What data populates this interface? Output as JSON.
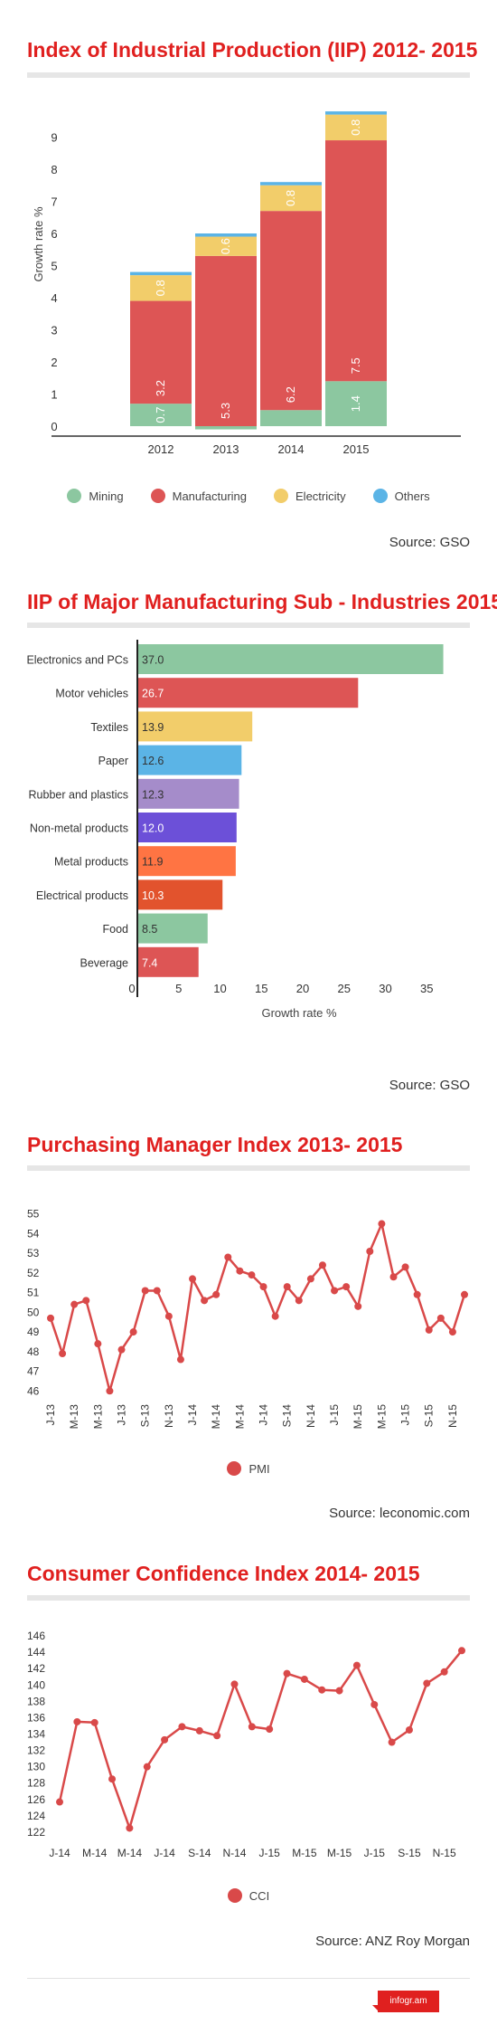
{
  "sections": {
    "iip": {
      "title": "Index of Industrial Production (IIP) 2012- 2015",
      "source": "Source: GSO",
      "legend": [
        {
          "name": "Mining",
          "color": "#8cc7a0"
        },
        {
          "name": "Manufacturing",
          "color": "#dd5555"
        },
        {
          "name": "Electricity",
          "color": "#f2cd6a"
        },
        {
          "name": "Others",
          "color": "#5bb4e6"
        }
      ]
    },
    "subind": {
      "title": "IIP of Major Manufacturing Sub - Industries 2015",
      "source": "Source: GSO"
    },
    "pmi": {
      "title": "Purchasing Manager Index 2013- 2015",
      "source": "Source: leconomic.com",
      "legend": [
        {
          "name": "PMI",
          "color": "#d94949"
        }
      ]
    },
    "cci": {
      "title": "Consumer Confidence Index 2014- 2015",
      "source": "Source: ANZ Roy Morgan",
      "legend": [
        {
          "name": "CCI",
          "color": "#d94949"
        }
      ]
    }
  },
  "brand": "infogr.am",
  "chart_data": [
    {
      "type": "bar",
      "stacked": true,
      "ylabel": "Growth rate %",
      "ylim": [
        -0.5,
        9.5
      ],
      "yticks": [
        0,
        1,
        2,
        3,
        4,
        5,
        6,
        7,
        8,
        9
      ],
      "categories": [
        "2012",
        "2013",
        "2014",
        "2015"
      ],
      "series": [
        {
          "name": "Mining",
          "color": "#8cc7a0",
          "values": [
            0.7,
            -0.1,
            0.5,
            1.4
          ],
          "labels": [
            "0.7",
            "",
            "",
            "1.4"
          ]
        },
        {
          "name": "Manufacturing",
          "color": "#dd5555",
          "values": [
            3.2,
            5.3,
            6.2,
            7.5
          ],
          "labels": [
            "3.2",
            "5.3",
            "6.2",
            "7.5"
          ]
        },
        {
          "name": "Electricity",
          "color": "#f2cd6a",
          "values": [
            0.8,
            0.6,
            0.8,
            0.8
          ],
          "labels": [
            "0.8",
            "0.6",
            "0.8",
            "0.8"
          ]
        },
        {
          "name": "Others",
          "color": "#5bb4e6",
          "values": [
            0.1,
            0.1,
            0.1,
            0.1
          ],
          "labels": [
            "",
            "",
            "",
            ""
          ]
        }
      ],
      "grid": false
    },
    {
      "type": "bar",
      "orientation": "horizontal",
      "xlabel": "Growth rate %",
      "xlim": [
        0,
        38
      ],
      "xticks": [
        0,
        5,
        10,
        15,
        20,
        25,
        30,
        35
      ],
      "categories": [
        "Electronics and PCs",
        "Motor vehicles",
        "Textiles",
        "Paper",
        "Rubber and plastics",
        "Non-metal products",
        "Metal products",
        "Electrical products",
        "Food",
        "Beverage"
      ],
      "values": [
        37.0,
        26.7,
        13.9,
        12.6,
        12.3,
        12.0,
        11.9,
        10.3,
        8.5,
        7.4
      ],
      "labels": [
        "37.0",
        "26.7",
        "13.9",
        "12.6",
        "12.3",
        "12.0",
        "11.9",
        "10.3",
        "8.5",
        "7.4"
      ],
      "colors": [
        "#8cc7a0",
        "#dd5555",
        "#f2cd6a",
        "#5bb4e6",
        "#a58cca",
        "#6c50d8",
        "#ff7443",
        "#e2532d",
        "#8cc7a0",
        "#dd5555"
      ],
      "label_colors": [
        "#333333",
        "#ffffff",
        "#333333",
        "#333333",
        "#333333",
        "#ffffff",
        "#333333",
        "#ffffff",
        "#333333",
        "#ffffff"
      ],
      "grid": false
    },
    {
      "type": "line",
      "series": [
        {
          "name": "PMI",
          "color": "#d94949"
        }
      ],
      "ylim": [
        45.6,
        55.4
      ],
      "yticks": [
        46,
        47,
        48,
        49,
        50,
        51,
        52,
        53,
        54,
        55
      ],
      "xtick_labels": [
        "J-13",
        "M-13",
        "M-13",
        "J-13",
        "S-13",
        "N-13",
        "J-14",
        "M-14",
        "M-14",
        "J-14",
        "S-14",
        "N-14",
        "J-15",
        "M-15",
        "M-15",
        "J-15",
        "S-15",
        "N-15"
      ],
      "values": [
        49.7,
        47.9,
        50.4,
        50.6,
        48.4,
        46.0,
        48.1,
        49.0,
        51.1,
        51.1,
        49.8,
        47.6,
        51.7,
        50.6,
        50.9,
        52.8,
        52.1,
        51.9,
        51.3,
        49.8,
        51.3,
        50.6,
        51.7,
        52.4,
        51.1,
        51.3,
        50.3,
        53.1,
        54.5,
        51.8,
        52.3,
        50.9,
        49.1,
        49.7,
        49.0,
        50.9
      ],
      "grid": false
    },
    {
      "type": "line",
      "series": [
        {
          "name": "CCI",
          "color": "#d94949"
        }
      ],
      "ylim": [
        121,
        147
      ],
      "yticks": [
        122,
        124,
        126,
        128,
        130,
        132,
        134,
        136,
        138,
        140,
        142,
        144,
        146
      ],
      "xtick_labels": [
        "J-14",
        "M-14",
        "M-14",
        "J-14",
        "S-14",
        "N-14",
        "J-15",
        "M-15",
        "M-15",
        "J-15",
        "S-15",
        "N-15"
      ],
      "values": [
        125.7,
        135.5,
        135.4,
        128.5,
        122.5,
        130.0,
        133.3,
        134.9,
        134.4,
        133.8,
        140.1,
        134.9,
        134.6,
        141.4,
        140.7,
        139.4,
        139.3,
        142.4,
        137.6,
        133.0,
        134.5,
        140.2,
        141.6,
        144.2
      ],
      "grid": false
    }
  ]
}
